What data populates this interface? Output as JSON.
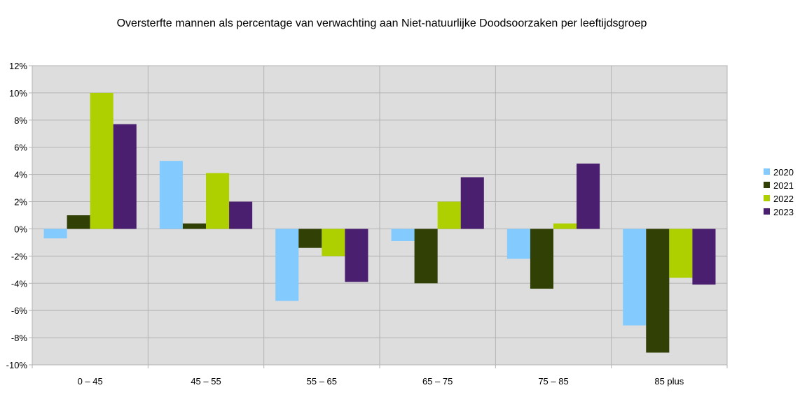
{
  "chart_data": {
    "type": "bar",
    "title": "Oversterfte mannen als percentage van verwachting aan Niet-natuurlijke Doodsoorzaken per leeftijdsgroep",
    "xlabel": "",
    "ylabel": "",
    "categories": [
      "0 – 45",
      "45 – 55",
      "55 – 65",
      "65 – 75",
      "75 – 85",
      "85 plus"
    ],
    "ylim": [
      -10,
      12
    ],
    "ytick_step": 2,
    "ytick_labels": [
      "12%",
      "10%",
      "8%",
      "6%",
      "4%",
      "2%",
      "0%",
      "-2%",
      "-4%",
      "-6%",
      "-8%",
      "-10%"
    ],
    "grid": true,
    "legend_position": "right",
    "series": [
      {
        "name": "2020",
        "color": "#83caff",
        "values": [
          -0.7,
          5.0,
          -5.3,
          -0.9,
          -2.2,
          -7.1
        ]
      },
      {
        "name": "2021",
        "color": "#314004",
        "values": [
          1.0,
          0.4,
          -1.4,
          -4.0,
          -4.4,
          -9.1
        ]
      },
      {
        "name": "2022",
        "color": "#aecf00",
        "values": [
          10.0,
          4.1,
          -2.0,
          2.0,
          0.4,
          -3.6
        ]
      },
      {
        "name": "2023",
        "color": "#4b1f6f",
        "values": [
          7.7,
          2.0,
          -3.9,
          3.8,
          4.8,
          -4.1
        ]
      }
    ]
  }
}
